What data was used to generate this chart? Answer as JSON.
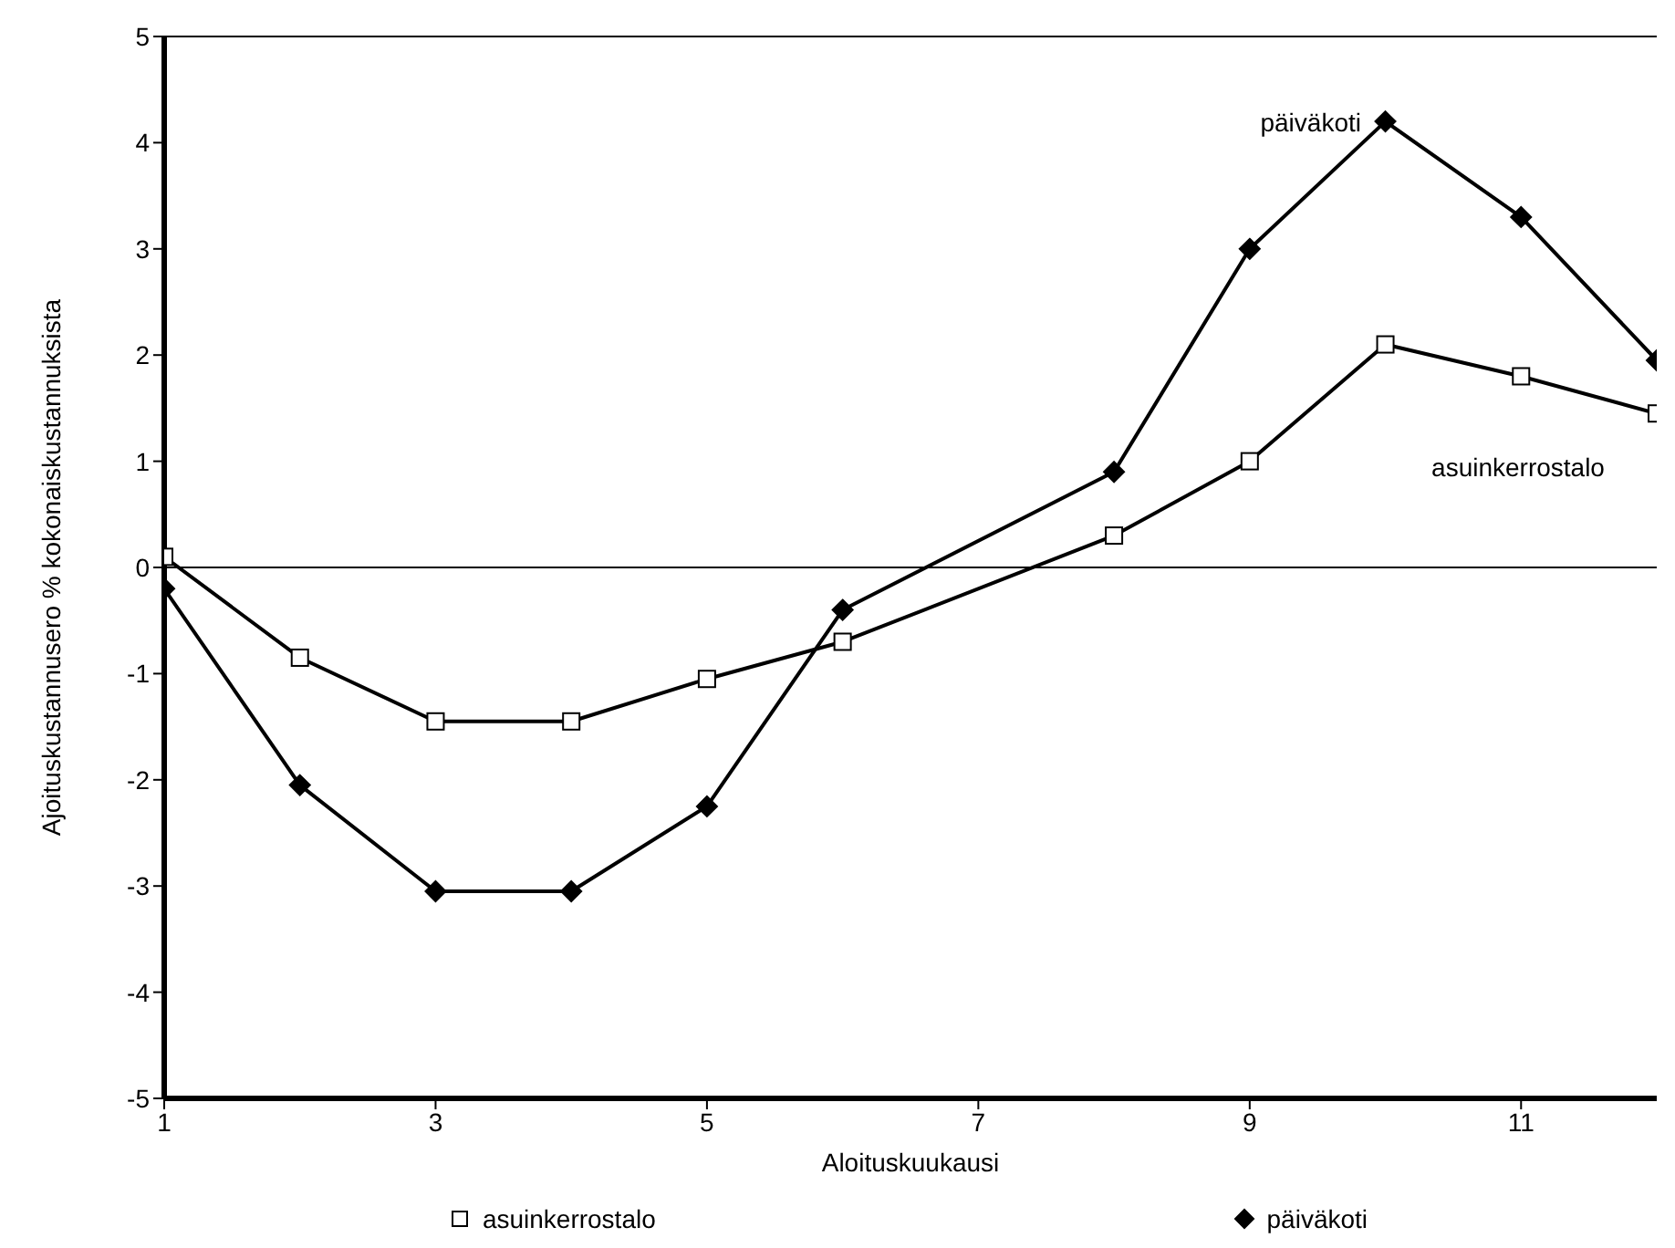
{
  "chart_data": {
    "type": "line",
    "xlabel": "Aloituskuukausi",
    "ylabel": "Ajoituskustannusero % kokonaiskustannuksista",
    "x": [
      1,
      2,
      3,
      4,
      5,
      6,
      8,
      9,
      10,
      11,
      12
    ],
    "series": [
      {
        "name": "asuinkerrostalo",
        "color": "#000000",
        "marker": "square",
        "values": [
          0.1,
          -0.85,
          -1.45,
          -1.45,
          -1.05,
          -0.7,
          0.3,
          1.0,
          2.1,
          1.8,
          1.45
        ]
      },
      {
        "name": "päiväkoti",
        "color": "#000000",
        "marker": "diamond",
        "values": [
          -0.2,
          -2.05,
          -3.05,
          -3.05,
          -2.25,
          -0.4,
          0.9,
          3.0,
          4.2,
          3.3,
          1.95
        ]
      }
    ],
    "xlim": [
      1,
      12
    ],
    "xticks": [
      1,
      3,
      5,
      7,
      9,
      11
    ],
    "ylim": [
      -5,
      5
    ],
    "yticks": [
      -5,
      -4,
      -3,
      -2,
      -1,
      0,
      1,
      2,
      3,
      4,
      5
    ],
    "ref_lines": [
      {
        "axis": "y",
        "value": 0,
        "label": null
      }
    ],
    "annotations": [
      "päiväkoti",
      "asuinkerrostalo"
    ],
    "legend": "bottom",
    "line_style": "solid"
  }
}
